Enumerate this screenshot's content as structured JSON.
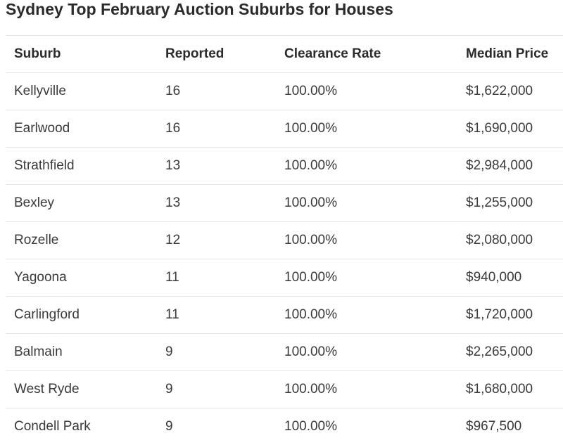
{
  "title": "Sydney Top February Auction Suburbs for Houses",
  "table": {
    "headers": [
      "Suburb",
      "Reported",
      "Clearance Rate",
      "Median Price"
    ],
    "rows": [
      [
        "Kellyville",
        "16",
        "100.00%",
        "$1,622,000"
      ],
      [
        "Earlwood",
        "16",
        "100.00%",
        "$1,690,000"
      ],
      [
        "Strathfield",
        "13",
        "100.00%",
        "$2,984,000"
      ],
      [
        "Bexley",
        "13",
        "100.00%",
        "$1,255,000"
      ],
      [
        "Rozelle",
        "12",
        "100.00%",
        "$2,080,000"
      ],
      [
        "Yagoona",
        "11",
        "100.00%",
        "$940,000"
      ],
      [
        "Carlingford",
        "11",
        "100.00%",
        "$1,720,000"
      ],
      [
        "Balmain",
        "9",
        "100.00%",
        "$2,265,000"
      ],
      [
        "West Ryde",
        "9",
        "100.00%",
        "$1,680,000"
      ],
      [
        "Condell Park",
        "9",
        "100.00%",
        "$967,500"
      ]
    ]
  }
}
